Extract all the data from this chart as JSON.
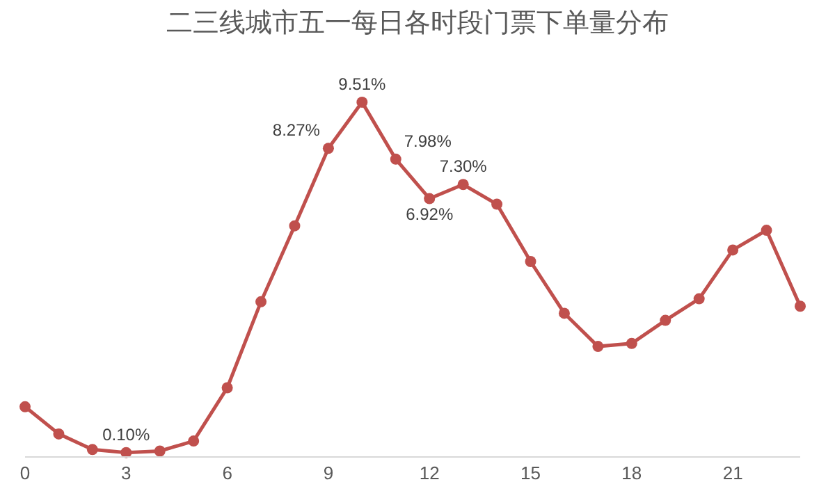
{
  "chart_data": {
    "type": "line",
    "title": "二三线城市五一每日各时段门票下单量分布",
    "x": [
      0,
      1,
      2,
      3,
      4,
      5,
      6,
      7,
      8,
      9,
      10,
      11,
      12,
      13,
      14,
      15,
      16,
      17,
      18,
      19,
      20,
      21,
      22,
      23
    ],
    "series": [
      {
        "color": "#c0504d",
        "values": [
          1.33,
          0.6,
          0.18,
          0.1,
          0.14,
          0.41,
          1.84,
          4.15,
          6.19,
          8.27,
          9.51,
          7.98,
          6.92,
          7.3,
          6.77,
          5.23,
          3.84,
          2.95,
          3.03,
          3.65,
          4.23,
          5.54,
          6.07,
          4.03
        ],
        "value_labels": [
          null,
          null,
          null,
          "0.10%",
          null,
          null,
          null,
          null,
          null,
          "8.27%",
          "9.51%",
          "7.98%",
          "6.92%",
          "7.30%",
          null,
          null,
          null,
          null,
          null,
          null,
          null,
          null,
          null,
          null
        ]
      }
    ],
    "xlim": [
      0,
      23
    ],
    "xticks": [
      0,
      3,
      6,
      9,
      12,
      15,
      18,
      21
    ],
    "tick_labels": "x",
    "marker": "circle",
    "line_style": "solid"
  }
}
